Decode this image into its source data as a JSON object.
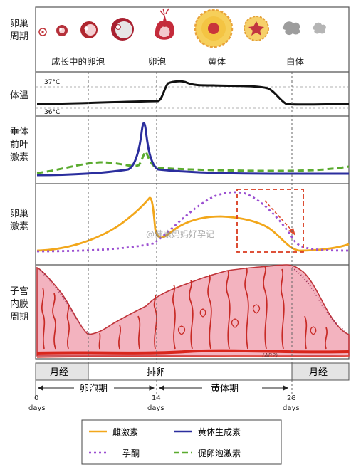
{
  "rows": {
    "ovary": "卵巢\n周期",
    "temperature": "体温",
    "pituitary": "垂体\n前叶\n激素",
    "ovarian_hormones": "卵巢\n激素",
    "endometrium": "子宫\n内膜\n周期"
  },
  "ovary_stages": {
    "growing": "成长中的卵泡",
    "ovulation": "卵泡",
    "corpus_luteum": "黄体",
    "corpus_albicans": "白体"
  },
  "temperature_labels": {
    "high": "37°C",
    "low": "36°C"
  },
  "phase_bar": {
    "menses_left": "月经",
    "ovulation": "排卵",
    "menses_right": "月经",
    "follicular": "卵泡期",
    "luteal": "黄体期"
  },
  "axis": {
    "ticks": [
      {
        "value": "0",
        "unit": "days"
      },
      {
        "value": "14",
        "unit": "days"
      },
      {
        "value": "28",
        "unit": "days"
      }
    ]
  },
  "legend": [
    {
      "label": "雌激素",
      "color": "#f2a71b",
      "style": "solid"
    },
    {
      "label": "黄体生成素",
      "color": "#2b2e9e",
      "style": "solid"
    },
    {
      "label": "孕酮",
      "color": "#9b4fd1",
      "style": "dotted"
    },
    {
      "label": "促卵泡激素",
      "color": "#5aab2e",
      "style": "dashed"
    }
  ],
  "watermark": "@健康妈妈好孕记",
  "signature": "(AB2)",
  "colors": {
    "estrogen": "#f2a71b",
    "lh": "#2b2e9e",
    "progesterone": "#9b4fd1",
    "fsh": "#5aab2e",
    "endometrium_fill": "#f3b3bf",
    "vessel": "#d9261c",
    "highlight_box": "#d93a1e"
  }
}
